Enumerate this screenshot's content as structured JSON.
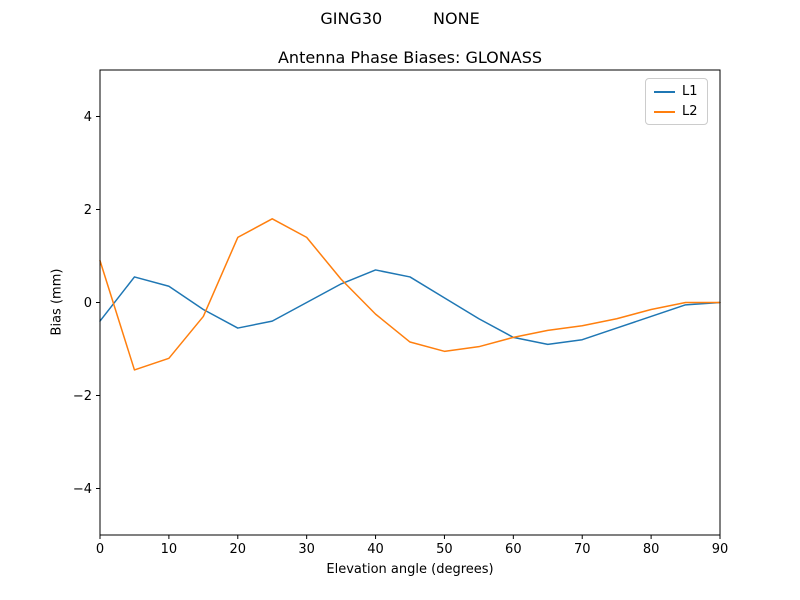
{
  "figure": {
    "suptitle": "GING30          NONE"
  },
  "chart_data": {
    "type": "line",
    "title": "Antenna Phase Biases: GLONASS",
    "xlabel": "Elevation angle (degrees)",
    "ylabel": "Bias (mm)",
    "xlim": [
      0,
      90
    ],
    "ylim": [
      -5,
      5
    ],
    "xticks": [
      0,
      10,
      20,
      30,
      40,
      50,
      60,
      70,
      80,
      90
    ],
    "yticks": [
      -4,
      -2,
      0,
      2,
      4
    ],
    "grid": false,
    "legend_position": "upper right",
    "x": [
      0,
      5,
      10,
      15,
      20,
      25,
      30,
      35,
      40,
      45,
      50,
      55,
      60,
      65,
      70,
      75,
      80,
      85,
      90
    ],
    "series": [
      {
        "name": "L1",
        "color": "#1f77b4",
        "values": [
          -0.4,
          0.55,
          0.35,
          -0.15,
          -0.55,
          -0.4,
          0.0,
          0.4,
          0.7,
          0.55,
          0.1,
          -0.35,
          -0.75,
          -0.9,
          -0.8,
          -0.55,
          -0.3,
          -0.05,
          0.0
        ]
      },
      {
        "name": "L2",
        "color": "#ff7f0e",
        "values": [
          0.9,
          -1.45,
          -1.2,
          -0.3,
          1.4,
          1.8,
          1.4,
          0.5,
          -0.25,
          -0.85,
          -1.05,
          -0.95,
          -0.75,
          -0.6,
          -0.5,
          -0.35,
          -0.15,
          0.0,
          0.0
        ]
      }
    ]
  }
}
